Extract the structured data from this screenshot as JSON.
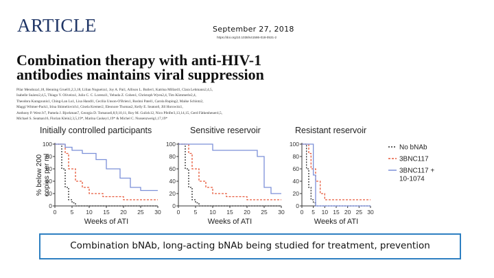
{
  "header": {
    "journal_logo": "ARTICLE",
    "date": "September 27, 2018",
    "doi": "https://doi.org/10.1038/s41586-018-0531-2"
  },
  "paper": {
    "title_line1": "Combination therapy with anti-HIV-1",
    "title_line2": "antibodies maintains viral suppression",
    "authors": [
      "Pilar Mendoza1,18, Henning Gruell1,2,3,18, Lilian Nogueira1, Joy A. Pai1, Allison L. Butler1, Katrina Millard1, Clara Lehmann2,4,5,",
      "Isabelle Suárez2,4,5, Thiago Y. Oliveira1, Julio C. C. Lorenzi1, Yehuda Z. Cohen1, Christoph Wyen2,4, Tim Kümmerle2,4,",
      "Theodora Karagounis1, Ching-Lan Lu1, Lisa Handl1, Cecilia Unson-O'Brien1, Roshni Patel1, Carola Ruping2, Maike Schlotz2,",
      "Maggi Witmer-Pack1, Irina Shimeliovich1, Gisela Kremer2, Eleonore Thomas2, Kelly E. Seaton6, Jill Horowitz1,",
      "Anthony P. West Jr7, Pamela J. Bjorkman7, Georgia D. Tomaras6,8,9,10,11, Roy M. Gulick12, Nico Pfeifer3,13,14,15, Gerd Fätkenheuer4,5,",
      "Michael S. Seaman16, Florian Klein2,3,5,19*, Marina Caskey1,19* & Michel C. Nussenzweig1,17,19*"
    ]
  },
  "chart_data": {
    "type": "line",
    "title": "",
    "ylabel": "% below 200 copies per ml",
    "xlabel": "Weeks of ATI",
    "xticks": [
      "0",
      "5",
      "10",
      "15",
      "20",
      "25",
      "30"
    ],
    "yticks": [
      "0",
      "20",
      "40",
      "60",
      "80",
      "100"
    ],
    "xlim": [
      0,
      30
    ],
    "ylim": [
      0,
      100
    ],
    "legend": {
      "position": "right",
      "entries": [
        "No bNAb",
        "3BNC117",
        "3BNC117 + 10-1074"
      ]
    },
    "colors": {
      "no_bnab": "#2b2b2b",
      "bnc": "#e65a3c",
      "combo": "#7b8fd8"
    },
    "panels": [
      {
        "title": "Initially controlled participants",
        "series": [
          {
            "name": "No bNAb",
            "x": [
              0,
              2,
              3,
              4,
              5,
              6,
              30
            ],
            "y": [
              100,
              60,
              30,
              10,
              5,
              0,
              0
            ]
          },
          {
            "name": "3BNC117",
            "x": [
              0,
              3,
              4,
              6,
              8,
              10,
              14,
              20,
              30
            ],
            "y": [
              100,
              85,
              60,
              40,
              30,
              20,
              15,
              10,
              10
            ]
          },
          {
            "name": "3BNC117 + 10-1074",
            "x": [
              0,
              3,
              5,
              8,
              12,
              15,
              19,
              22,
              25,
              30
            ],
            "y": [
              100,
              95,
              90,
              85,
              75,
              60,
              45,
              30,
              25,
              25
            ]
          }
        ]
      },
      {
        "title": "Sensitive reservoir",
        "series": [
          {
            "name": "No bNAb",
            "x": [
              0,
              2,
              3,
              4,
              5,
              6,
              30
            ],
            "y": [
              100,
              60,
              30,
              10,
              5,
              0,
              0
            ]
          },
          {
            "name": "3BNC117",
            "x": [
              0,
              3,
              4,
              6,
              8,
              10,
              14,
              20,
              30
            ],
            "y": [
              100,
              85,
              60,
              40,
              30,
              20,
              15,
              10,
              10
            ]
          },
          {
            "name": "3BNC117 + 10-1074",
            "x": [
              0,
              5,
              10,
              20,
              23,
              25,
              27,
              30
            ],
            "y": [
              100,
              100,
              90,
              90,
              80,
              30,
              20,
              20
            ]
          }
        ]
      },
      {
        "title": "Resistant reservoir",
        "series": [
          {
            "name": "No bNAb",
            "x": [
              0,
              2,
              3,
              4,
              5,
              6,
              30
            ],
            "y": [
              100,
              60,
              30,
              10,
              5,
              0,
              0
            ]
          },
          {
            "name": "3BNC117",
            "x": [
              0,
              3,
              4,
              6,
              8,
              10,
              30
            ],
            "y": [
              100,
              85,
              60,
              40,
              20,
              10,
              10
            ]
          },
          {
            "name": "3BNC117 + 10-1074",
            "x": [
              0,
              3,
              5,
              6,
              30
            ],
            "y": [
              100,
              100,
              50,
              0,
              0
            ]
          }
        ]
      }
    ]
  },
  "caption": "Combination bNAb, long-acting bNAb being studied for treatment, prevention"
}
